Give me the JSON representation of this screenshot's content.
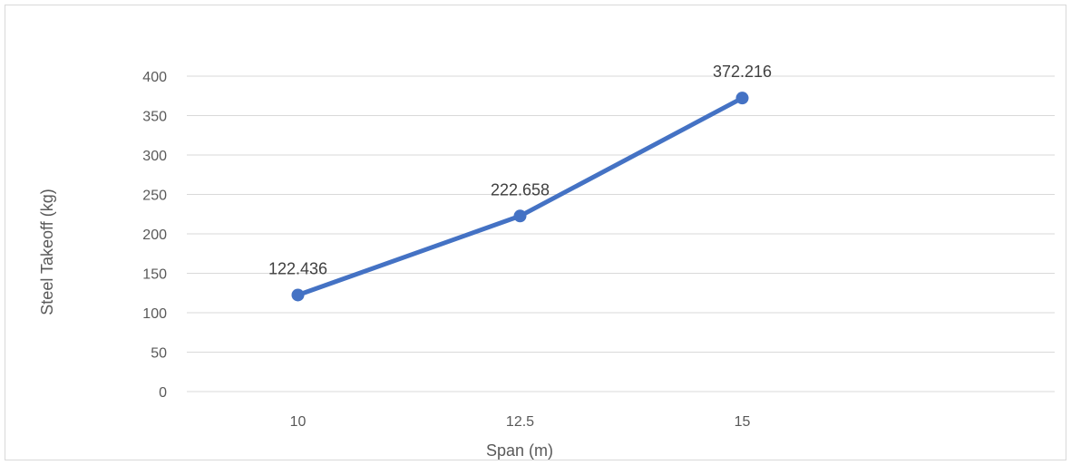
{
  "chart_data": {
    "type": "line",
    "title": "",
    "xlabel": "Span (m)",
    "ylabel": "Steel Takeoff (kg)",
    "categories": [
      "10",
      "12.5",
      "15"
    ],
    "series": [
      {
        "values": [
          122.436,
          222.658,
          372.216
        ],
        "data_labels": [
          "122.436",
          "222.658",
          "372.216"
        ]
      }
    ],
    "ylim": [
      0,
      400
    ],
    "yticks": [
      0,
      50,
      100,
      150,
      200,
      250,
      300,
      350,
      400
    ],
    "grid": "horizontal",
    "legend": "none",
    "colors": {
      "series": "#4472c4",
      "grid": "#d9d9d9",
      "text": "#595959"
    }
  }
}
